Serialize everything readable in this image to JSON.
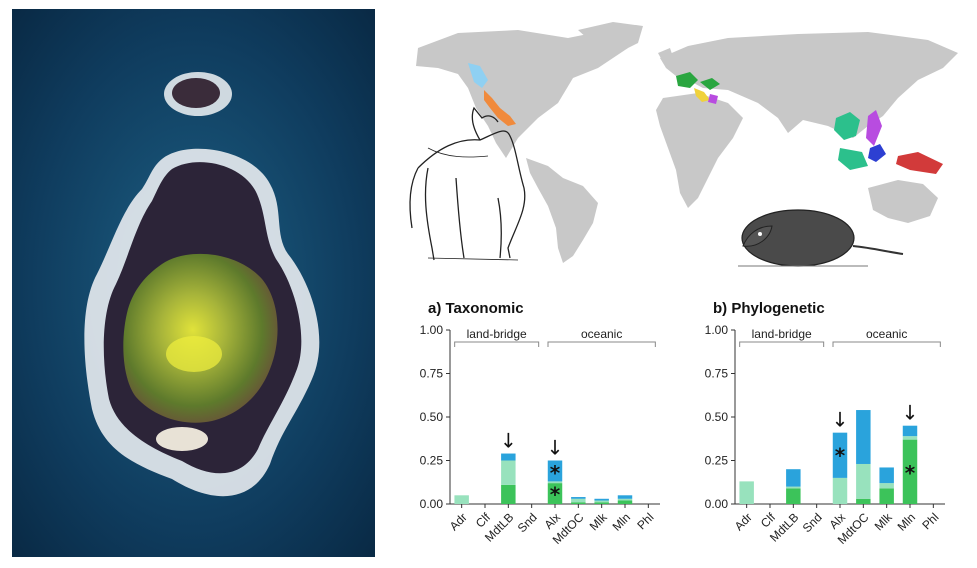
{
  "colors": {
    "background": "#ffffff",
    "sea_photo": "#0d3150",
    "land_map": "#c8c8c8",
    "bar_dark_green": "#3cc35a",
    "bar_light_green": "#98e2bd",
    "bar_blue": "#2aa3dc",
    "region_light_blue": "#8fd0f2",
    "region_orange": "#f08a3c",
    "region_green": "#2aa640",
    "region_teal": "#2cc08c",
    "region_purple": "#b84ce0",
    "region_blue": "#2d3fd2",
    "region_red": "#d23a3a",
    "region_yellow": "#f0d23c"
  },
  "icons": [
    "island-photo",
    "world-map",
    "wolf-drawing",
    "shrew-drawing",
    "down-arrow-icon",
    "asterisk-icon"
  ],
  "chart_data": [
    {
      "type": "bar",
      "stacked": true,
      "title": "a) Taxonomic",
      "categories": [
        "Adr",
        "Clf",
        "MdtLB",
        "Snd",
        "Alx",
        "MdtOC",
        "Mlk",
        "Mln",
        "Phl"
      ],
      "groups": [
        {
          "label": "land-bridge",
          "categories": [
            "Adr",
            "Clf",
            "MdtLB",
            "Snd"
          ]
        },
        {
          "label": "oceanic",
          "categories": [
            "Alx",
            "MdtOC",
            "Mlk",
            "Mln",
            "Phl"
          ]
        }
      ],
      "series": [
        {
          "color": "#3cc35a",
          "values": [
            0,
            0,
            0.11,
            0,
            0.12,
            0.01,
            0.01,
            0.02,
            0
          ]
        },
        {
          "color": "#98e2bd",
          "values": [
            0.05,
            0,
            0.14,
            0,
            0.01,
            0.02,
            0.01,
            0.01,
            0
          ]
        },
        {
          "color": "#2aa3dc",
          "values": [
            0,
            0,
            0.04,
            0,
            0.12,
            0.01,
            0.01,
            0.02,
            0
          ]
        }
      ],
      "y_ticks": [
        "0.00",
        "0.25",
        "0.50",
        "0.75",
        "1.00"
      ],
      "ylim": [
        0,
        1
      ],
      "arrows_at": [
        "MdtLB",
        "Alx"
      ],
      "asterisks": [
        {
          "category": "Alx",
          "value": 0.065
        },
        {
          "category": "Alx",
          "value": 0.19
        }
      ],
      "marker_symbols": {
        "arrow": "↓",
        "asterisk": "*"
      }
    },
    {
      "type": "bar",
      "stacked": true,
      "title": "b) Phylogenetic",
      "categories": [
        "Adr",
        "Clf",
        "MdtLB",
        "Snd",
        "Alx",
        "MdtOC",
        "Mlk",
        "Mln",
        "Phl"
      ],
      "groups": [
        {
          "label": "land-bridge",
          "categories": [
            "Adr",
            "Clf",
            "MdtLB",
            "Snd"
          ]
        },
        {
          "label": "oceanic",
          "categories": [
            "Alx",
            "MdtOC",
            "Mlk",
            "Mln",
            "Phl"
          ]
        }
      ],
      "series": [
        {
          "color": "#3cc35a",
          "values": [
            0,
            0,
            0.09,
            0,
            0,
            0.03,
            0.09,
            0.37,
            0
          ]
        },
        {
          "color": "#98e2bd",
          "values": [
            0.13,
            0,
            0.01,
            0,
            0.15,
            0.2,
            0.03,
            0.02,
            0
          ]
        },
        {
          "color": "#2aa3dc",
          "values": [
            0,
            0,
            0.1,
            0,
            0.26,
            0.31,
            0.09,
            0.06,
            0
          ]
        }
      ],
      "y_ticks": [
        "0.00",
        "0.25",
        "0.50",
        "0.75",
        "1.00"
      ],
      "ylim": [
        0,
        1
      ],
      "arrows_at": [
        "Alx",
        "Mln"
      ],
      "asterisks": [
        {
          "category": "Alx",
          "value": 0.29
        },
        {
          "category": "Mln",
          "value": 0.19
        }
      ],
      "marker_symbols": {
        "arrow": "↓",
        "asterisk": "*"
      }
    }
  ]
}
